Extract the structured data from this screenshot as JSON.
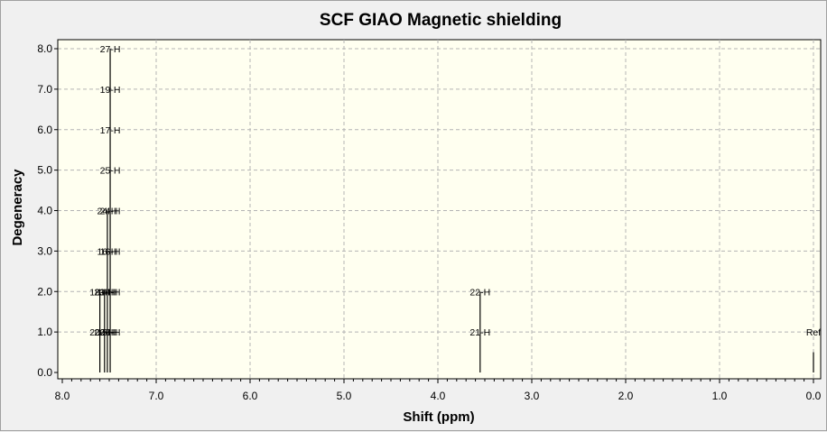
{
  "chart_data": {
    "type": "bar",
    "title": "SCF GIAO Magnetic shielding",
    "xlabel": "Shift (ppm)",
    "ylabel": "Degeneracy",
    "xlim": [
      8.0,
      0.0
    ],
    "ylim": [
      0.0,
      8.0
    ],
    "x_reversed": true,
    "grid": true,
    "xticks": [
      8.0,
      7.0,
      6.0,
      5.0,
      4.0,
      3.0,
      2.0,
      1.0,
      0.0
    ],
    "yticks": [
      0.0,
      1.0,
      2.0,
      3.0,
      4.0,
      5.0,
      6.0,
      7.0,
      8.0
    ],
    "xtick_labels": [
      "8.0",
      "7.0",
      "6.0",
      "5.0",
      "4.0",
      "3.0",
      "2.0",
      "1.0",
      "0.0"
    ],
    "ytick_labels": [
      "0.0",
      "1.0",
      "2.0",
      "3.0",
      "4.0",
      "5.0",
      "6.0",
      "7.0",
      "8.0"
    ],
    "peaks": [
      {
        "shift": 7.6,
        "degeneracy": 2.0,
        "labels": [
          "20-H",
          "18-H"
        ]
      },
      {
        "shift": 7.55,
        "degeneracy": 2.0,
        "labels": [
          "26-H",
          "23-H"
        ]
      },
      {
        "shift": 7.52,
        "degeneracy": 4.0,
        "labels": [
          "15-H",
          "14-H",
          "16-H",
          "24-H"
        ]
      },
      {
        "shift": 7.49,
        "degeneracy": 8.0,
        "labels": [
          "26-H",
          "14-H",
          "16-H",
          "24-H",
          "25-H",
          "17-H",
          "19-H",
          "27-H"
        ]
      },
      {
        "shift": 3.55,
        "degeneracy": 2.0,
        "labels": [
          "21-H",
          "22-H"
        ]
      },
      {
        "shift": 0.0,
        "degeneracy": 0.5,
        "labels": [
          "Ref"
        ]
      }
    ],
    "colors": {
      "plot_background": "#fffff0",
      "grid": "#b4b4b4",
      "bars": "#000000",
      "frame_background": "#f0f0f0"
    }
  }
}
